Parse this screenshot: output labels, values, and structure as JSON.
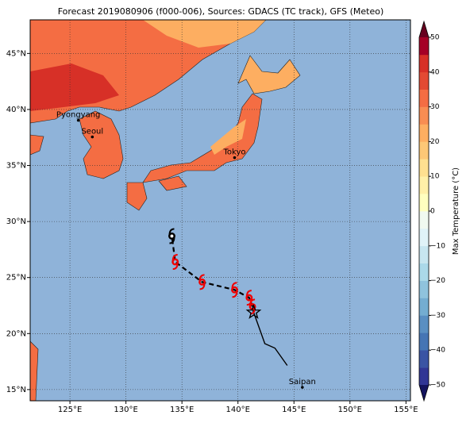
{
  "title": "Forecast 2019080906 (f000-006), Sources: GDACS (TC track), GFS (Meteo)",
  "map": {
    "lonlim": [
      121.45,
      155.4
    ],
    "latlim": [
      14.0,
      48.0
    ],
    "grid": true,
    "lon_ticks": [
      {
        "value": 125,
        "label": "125°E"
      },
      {
        "value": 130,
        "label": "130°E"
      },
      {
        "value": 135,
        "label": "135°E"
      },
      {
        "value": 140,
        "label": "140°E"
      },
      {
        "value": 145,
        "label": "145°E"
      },
      {
        "value": 150,
        "label": "150°E"
      },
      {
        "value": 155,
        "label": "155°E"
      }
    ],
    "lat_ticks": [
      {
        "value": 15,
        "label": "15°N"
      },
      {
        "value": 20,
        "label": "20°N"
      },
      {
        "value": 25,
        "label": "25°N"
      },
      {
        "value": 30,
        "label": "30°N"
      },
      {
        "value": 35,
        "label": "35°N"
      },
      {
        "value": 40,
        "label": "40°N"
      },
      {
        "value": 45,
        "label": "45°N"
      }
    ]
  },
  "places": [
    {
      "name": "Pyongyang",
      "lon": 125.75,
      "lat": 39.03
    },
    {
      "name": "Seoul",
      "lon": 127.0,
      "lat": 37.55
    },
    {
      "name": "Tokyo",
      "lon": 139.7,
      "lat": 35.7
    },
    {
      "name": "Saipan",
      "lon": 145.75,
      "lat": 15.2
    }
  ],
  "track": {
    "observed": {
      "lon": [
        144.4,
        143.3,
        142.4,
        141.4
      ],
      "lat": [
        17.15,
        18.7,
        19.1,
        21.9
      ]
    },
    "forecast": {
      "lon": [
        141.3,
        141.0,
        139.7,
        136.8,
        134.4,
        134.1
      ],
      "lat": [
        22.4,
        23.2,
        23.9,
        24.6,
        26.4,
        28.7
      ]
    },
    "current": {
      "lon": 141.4,
      "lat": 21.9
    }
  },
  "colorbar": {
    "label": "Max Temperature (°C)",
    "lim": [
      -50,
      50
    ],
    "ticks": [
      {
        "value": -50,
        "label": "−50"
      },
      {
        "value": -40,
        "label": "−40"
      },
      {
        "value": -30,
        "label": "−30"
      },
      {
        "value": -20,
        "label": "−20"
      },
      {
        "value": -10,
        "label": "−10"
      },
      0,
      10,
      20,
      30,
      40,
      50
    ],
    "colors": [
      "#313695",
      "#3a54a4",
      "#4575b4",
      "#5a8fc2",
      "#74add1",
      "#8fc3dd",
      "#abd9e9",
      "#c7e6f0",
      "#e0f3f8",
      "#f0f9f0",
      "#ffffbf",
      "#fff0a8",
      "#fee090",
      "#fdc776",
      "#fdae61",
      "#f88d52",
      "#f46d43",
      "#e34a33",
      "#d73027",
      "#a50026"
    ],
    "extend_colors": [
      "#14145e",
      "#67001f"
    ]
  }
}
